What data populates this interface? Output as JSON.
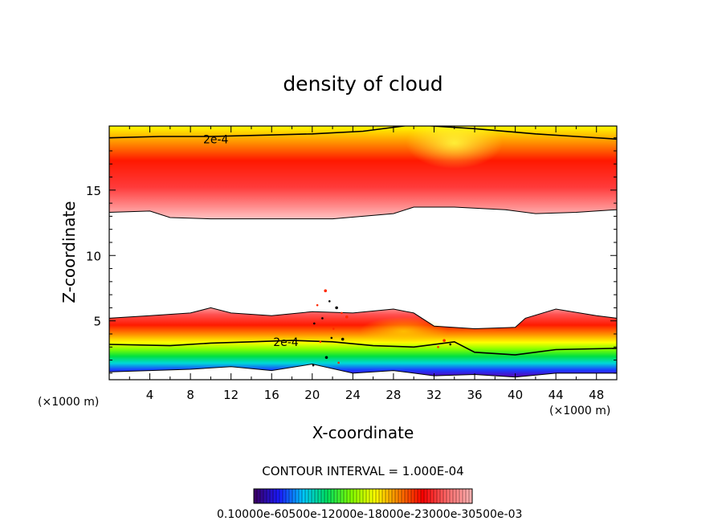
{
  "chart_data": {
    "type": "heatmap",
    "title": "density of cloud",
    "xlabel": "X-coordinate",
    "ylabel": "Z-coordinate",
    "x_unit_left": "(×1000 m)",
    "x_unit_right": "(×1000 m)",
    "xlim": [
      0,
      50
    ],
    "ylim": [
      0.5,
      19.9
    ],
    "x_ticks": [
      4,
      8,
      12,
      16,
      20,
      24,
      28,
      32,
      36,
      40,
      44,
      48
    ],
    "y_ticks": [
      5,
      10,
      15
    ],
    "contour_interval_text": "CONTOUR INTERVAL = 1.000E-04",
    "contour_labels": [
      {
        "text": "2e-4",
        "x": 10.5,
        "z": 18.9
      },
      {
        "text": "2e-4",
        "x": 17.4,
        "z": 3.4
      }
    ],
    "colorbar_tick_text": "0.10000e-60500e-12000e-18000e-23000e-30500e-03",
    "colormap": [
      "#3b006a",
      "#1a1aff",
      "#00c8ff",
      "#00e060",
      "#80ff00",
      "#ffff00",
      "#ff8000",
      "#ff0000",
      "#ff6a6a",
      "#ffb0b0"
    ],
    "upper_layer": {
      "top_contour": [
        [
          0,
          19.0
        ],
        [
          5,
          19.1
        ],
        [
          10,
          19.1
        ],
        [
          15,
          19.2
        ],
        [
          20,
          19.3
        ],
        [
          25,
          19.5
        ],
        [
          29,
          19.9
        ],
        [
          30,
          20.0
        ],
        [
          36,
          19.7
        ],
        [
          42,
          19.3
        ],
        [
          46,
          19.1
        ],
        [
          50,
          18.9
        ]
      ],
      "bottom_edge": [
        [
          0,
          13.3
        ],
        [
          4,
          13.4
        ],
        [
          6,
          12.9
        ],
        [
          10,
          12.8
        ],
        [
          16,
          12.8
        ],
        [
          22,
          12.8
        ],
        [
          28,
          13.2
        ],
        [
          30,
          13.7
        ],
        [
          34,
          13.7
        ],
        [
          39,
          13.5
        ],
        [
          42,
          13.2
        ],
        [
          46,
          13.3
        ],
        [
          50,
          13.5
        ]
      ],
      "core_z": 15.1,
      "peak_x": 34
    },
    "lower_layer": {
      "top_edge": [
        [
          0,
          5.2
        ],
        [
          4,
          5.4
        ],
        [
          8,
          5.6
        ],
        [
          10,
          6.0
        ],
        [
          12,
          5.6
        ],
        [
          16,
          5.4
        ],
        [
          20,
          5.7
        ],
        [
          24,
          5.6
        ],
        [
          28,
          5.9
        ],
        [
          30,
          5.6
        ],
        [
          32,
          4.6
        ],
        [
          36,
          4.4
        ],
        [
          40,
          4.5
        ],
        [
          41,
          5.2
        ],
        [
          44,
          5.9
        ],
        [
          48,
          5.4
        ],
        [
          50,
          5.2
        ]
      ],
      "contour_2e4": [
        [
          0,
          3.2
        ],
        [
          6,
          3.1
        ],
        [
          10,
          3.3
        ],
        [
          14,
          3.4
        ],
        [
          18,
          3.5
        ],
        [
          22,
          3.4
        ],
        [
          26,
          3.1
        ],
        [
          30,
          3.0
        ],
        [
          34,
          3.4
        ],
        [
          36,
          2.6
        ],
        [
          40,
          2.4
        ],
        [
          44,
          2.8
        ],
        [
          50,
          2.9
        ]
      ],
      "base_edge": [
        [
          0,
          1.1
        ],
        [
          4,
          1.2
        ],
        [
          8,
          1.3
        ],
        [
          12,
          1.5
        ],
        [
          16,
          1.2
        ],
        [
          20,
          1.7
        ],
        [
          24,
          1.0
        ],
        [
          28,
          1.2
        ],
        [
          32,
          0.8
        ],
        [
          36,
          0.9
        ],
        [
          40,
          0.7
        ],
        [
          44,
          1.0
        ],
        [
          50,
          1.0
        ]
      ]
    }
  }
}
